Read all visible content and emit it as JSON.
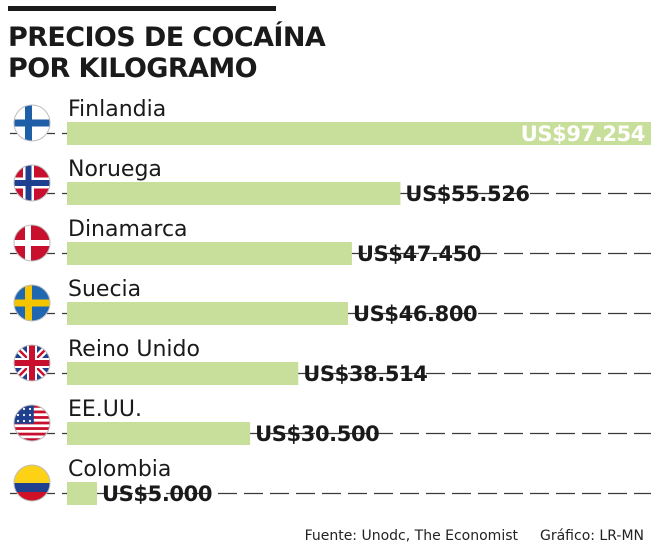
{
  "title_lines": [
    "PRECIOS DE COCAÍNA",
    "POR KILOGRAMO"
  ],
  "chart_data": {
    "type": "bar",
    "orientation": "horizontal",
    "title": "PRECIOS DE COCAÍNA POR KILOGRAMO",
    "categories": [
      "Finlandia",
      "Noruega",
      "Dinamarca",
      "Suecia",
      "Reino Unido",
      "EE.UU.",
      "Colombia"
    ],
    "values": [
      97254,
      55526,
      47450,
      46800,
      38514,
      30500,
      5000
    ],
    "value_labels": [
      "US$97.254",
      "US$55.526",
      "US$47.450",
      "US$46.800",
      "US$38.514",
      "US$30.500",
      "US$5.000"
    ],
    "flags": [
      "finland-flag",
      "norway-flag",
      "denmark-flag",
      "sweden-flag",
      "uk-flag",
      "usa-flag",
      "colombia-flag"
    ],
    "xlim": [
      0,
      97254
    ],
    "grid": "dashed",
    "legend": "none",
    "bar_color": "#c8df9b"
  },
  "source": {
    "fuente": "Fuente: Unodc, The Economist",
    "grafico": "Gráfico: LR-MN"
  }
}
